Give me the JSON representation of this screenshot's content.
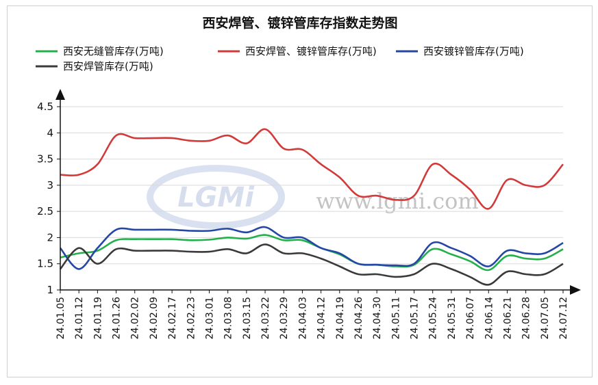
{
  "chart_data": {
    "type": "line",
    "title": "西安焊管、镀锌管库存指数走势图",
    "xlabel": "",
    "ylabel": "",
    "ylim": [
      1,
      4.5
    ],
    "yticks": [
      "4.5",
      "4",
      "3.5",
      "3",
      "2.5",
      "2",
      "1.5",
      "1"
    ],
    "grid": true,
    "legend_position": "top",
    "x": [
      "24.01.05",
      "24.01.12",
      "24.01.19",
      "24.01.26",
      "24.02.02",
      "24.02.09",
      "24.02.17",
      "24.02.23",
      "24.03.01",
      "24.03.08",
      "24.03.15",
      "24.03.22",
      "24.03.29",
      "24.04.03",
      "24.04.12",
      "24.04.19",
      "24.04.26",
      "24.04.30",
      "24.05.11",
      "24.05.17",
      "24.05.24",
      "24.05.31",
      "24.06.07",
      "24.06.14",
      "24.06.21",
      "24.06.28",
      "24.07.05",
      "24.07.12"
    ],
    "series": [
      {
        "name": "西安无缝管库存(万吨)",
        "color": "#22b04a",
        "values": [
          1.62,
          1.7,
          1.75,
          1.95,
          1.97,
          1.97,
          1.97,
          1.95,
          1.96,
          2.0,
          1.98,
          2.05,
          1.95,
          1.95,
          1.8,
          1.68,
          1.5,
          1.48,
          1.45,
          1.48,
          1.78,
          1.68,
          1.55,
          1.38,
          1.65,
          1.6,
          1.6,
          1.78
        ]
      },
      {
        "name": "西安焊管、镀锌管库存(万吨)",
        "color": "#d23a3a",
        "values": [
          3.2,
          3.2,
          3.4,
          3.95,
          3.9,
          3.9,
          3.9,
          3.85,
          3.85,
          3.95,
          3.8,
          4.07,
          3.7,
          3.68,
          3.4,
          3.15,
          2.8,
          2.8,
          2.72,
          2.8,
          3.4,
          3.2,
          2.92,
          2.55,
          3.1,
          3.0,
          3.0,
          3.4
        ]
      },
      {
        "name": "西安镀锌管库存(万吨)",
        "color": "#2447a6",
        "values": [
          1.8,
          1.4,
          1.8,
          2.15,
          2.15,
          2.15,
          2.15,
          2.13,
          2.13,
          2.17,
          2.1,
          2.2,
          2.0,
          2.0,
          1.8,
          1.7,
          1.5,
          1.48,
          1.47,
          1.5,
          1.9,
          1.8,
          1.65,
          1.45,
          1.75,
          1.7,
          1.7,
          1.9
        ]
      },
      {
        "name": "西安焊管库存(万吨)",
        "color": "#3a3a3a",
        "values": [
          1.4,
          1.8,
          1.5,
          1.78,
          1.75,
          1.75,
          1.75,
          1.73,
          1.73,
          1.78,
          1.7,
          1.87,
          1.7,
          1.7,
          1.6,
          1.45,
          1.3,
          1.3,
          1.25,
          1.3,
          1.5,
          1.4,
          1.25,
          1.1,
          1.35,
          1.3,
          1.3,
          1.5
        ]
      }
    ]
  },
  "watermark": {
    "logo": "LGMi",
    "url": "www.lgmi.com"
  }
}
